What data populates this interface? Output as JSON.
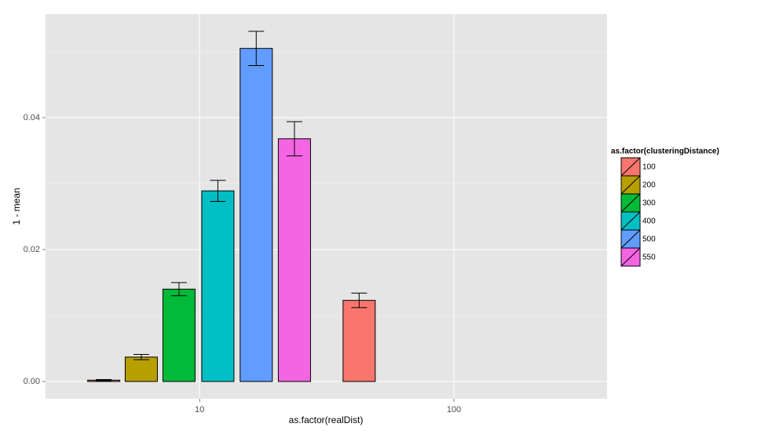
{
  "chart_data": {
    "type": "bar",
    "x_label": "as.factor(realDist)",
    "y_label": "1 - mean",
    "legend_title": "as.factor(clusteringDistance)",
    "legend_position": "right",
    "xscale": "log",
    "xlim": [
      2.48,
      400
    ],
    "xticks": [
      10,
      100
    ],
    "ylim": [
      -0.00262,
      0.0557
    ],
    "yticks": [
      {
        "value": 0,
        "label": "0.00"
      },
      {
        "value": 0.02,
        "label": "0.02"
      },
      {
        "value": 0.04,
        "label": "0.04"
      }
    ],
    "y_minor_grid": [
      0.01,
      0.03,
      0.05
    ],
    "grid": true,
    "series": [
      {
        "name": "100",
        "color": "#f8766d",
        "x": [
          4.2,
          42.4
        ],
        "values": [
          0.0002,
          0.0123
        ],
        "errors": [
          0.0001,
          0.0011
        ]
      },
      {
        "name": "200",
        "color": "#b79f00",
        "x": [
          5.9
        ],
        "values": [
          0.0037
        ],
        "errors": [
          0.0004
        ]
      },
      {
        "name": "300",
        "color": "#00ba38",
        "x": [
          8.3
        ],
        "values": [
          0.014
        ],
        "errors": [
          0.001
        ]
      },
      {
        "name": "400",
        "color": "#00bfc4",
        "x": [
          11.8
        ],
        "values": [
          0.0289
        ],
        "errors": [
          0.0016
        ]
      },
      {
        "name": "500",
        "color": "#619cff",
        "x": [
          16.7
        ],
        "values": [
          0.0505
        ],
        "errors": [
          0.0026
        ]
      },
      {
        "name": "550",
        "color": "#f564e3",
        "x": [
          23.6
        ],
        "values": [
          0.0368
        ],
        "errors": [
          0.0026
        ]
      }
    ]
  }
}
